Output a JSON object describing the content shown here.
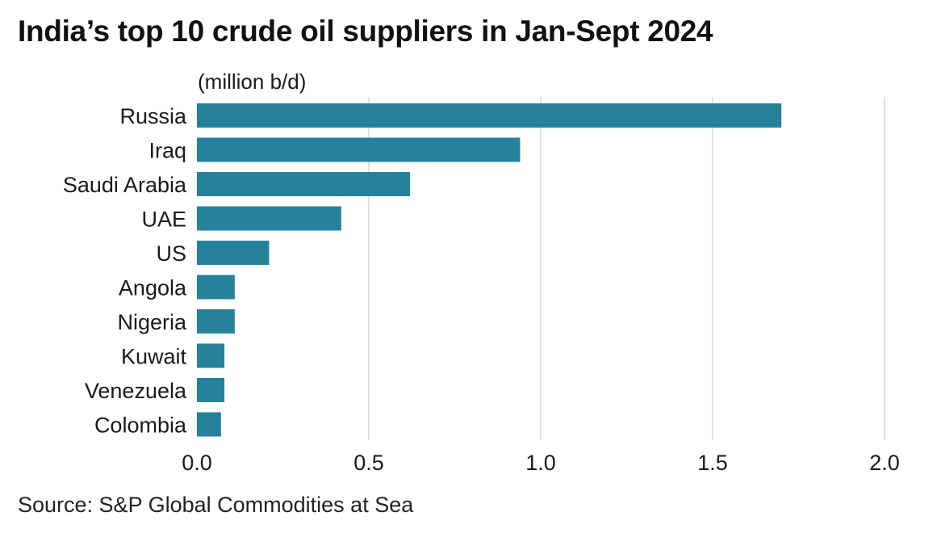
{
  "title": "India’s top 10 crude oil suppliers in Jan-Sept 2024",
  "source": "Source: S&P Global Commodities at Sea",
  "colors": {
    "bar": "#26829b",
    "grid": "#d9d9d9",
    "text": "#1a1a1a"
  },
  "chart_data": {
    "type": "bar",
    "orientation": "horizontal",
    "unit_label": "(million b/d)",
    "categories": [
      "Russia",
      "Iraq",
      "Saudi Arabia",
      "UAE",
      "US",
      "Angola",
      "Nigeria",
      "Kuwait",
      "Venezuela",
      "Colombia"
    ],
    "values": [
      1.7,
      0.94,
      0.62,
      0.42,
      0.21,
      0.11,
      0.11,
      0.08,
      0.08,
      0.07
    ],
    "xlim": [
      0,
      2.0
    ],
    "xticks": [
      0.0,
      0.5,
      1.0,
      1.5,
      2.0
    ],
    "xtick_labels": [
      "0.0",
      "0.5",
      "1.0",
      "1.5",
      "2.0"
    ],
    "grid": true,
    "legend": "none"
  }
}
